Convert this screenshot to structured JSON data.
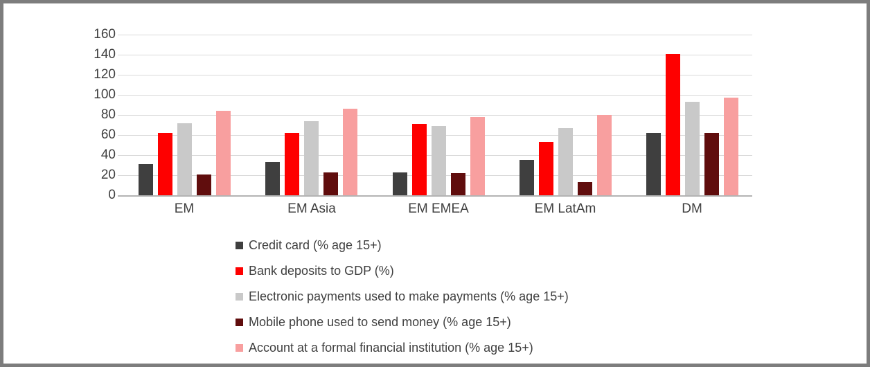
{
  "chart_data": {
    "type": "bar",
    "title": "",
    "xlabel": "",
    "ylabel": "",
    "categories": [
      "EM",
      "EM Asia",
      "EM EMEA",
      "EM LatAm",
      "DM"
    ],
    "series": [
      {
        "name": "Credit card (% age 15+)",
        "color": "#3f3f3f",
        "values": [
          31,
          33,
          23,
          35,
          62
        ]
      },
      {
        "name": "Bank deposits to GDP (%)",
        "color": "#fe0000",
        "values": [
          62,
          62,
          71,
          53,
          141
        ]
      },
      {
        "name": "Electronic payments used to make payments (% age 15+)",
        "color": "#c9c9c9",
        "values": [
          72,
          74,
          69,
          67,
          93
        ]
      },
      {
        "name": "Mobile phone used to send money (% age 15+)",
        "color": "#600d0d",
        "values": [
          21,
          23,
          22,
          13,
          62
        ]
      },
      {
        "name": "Account at a formal financial institution (% age 15+)",
        "color": "#f89f9f",
        "values": [
          84,
          86,
          78,
          80,
          97
        ]
      }
    ],
    "ylim": [
      0,
      160
    ],
    "ytick_step": 20,
    "y_tick_labels": [
      "0",
      "20",
      "40",
      "60",
      "80",
      "100",
      "120",
      "140",
      "160"
    ],
    "grid": "horizontal-only",
    "legend_position": "bottom-left"
  }
}
